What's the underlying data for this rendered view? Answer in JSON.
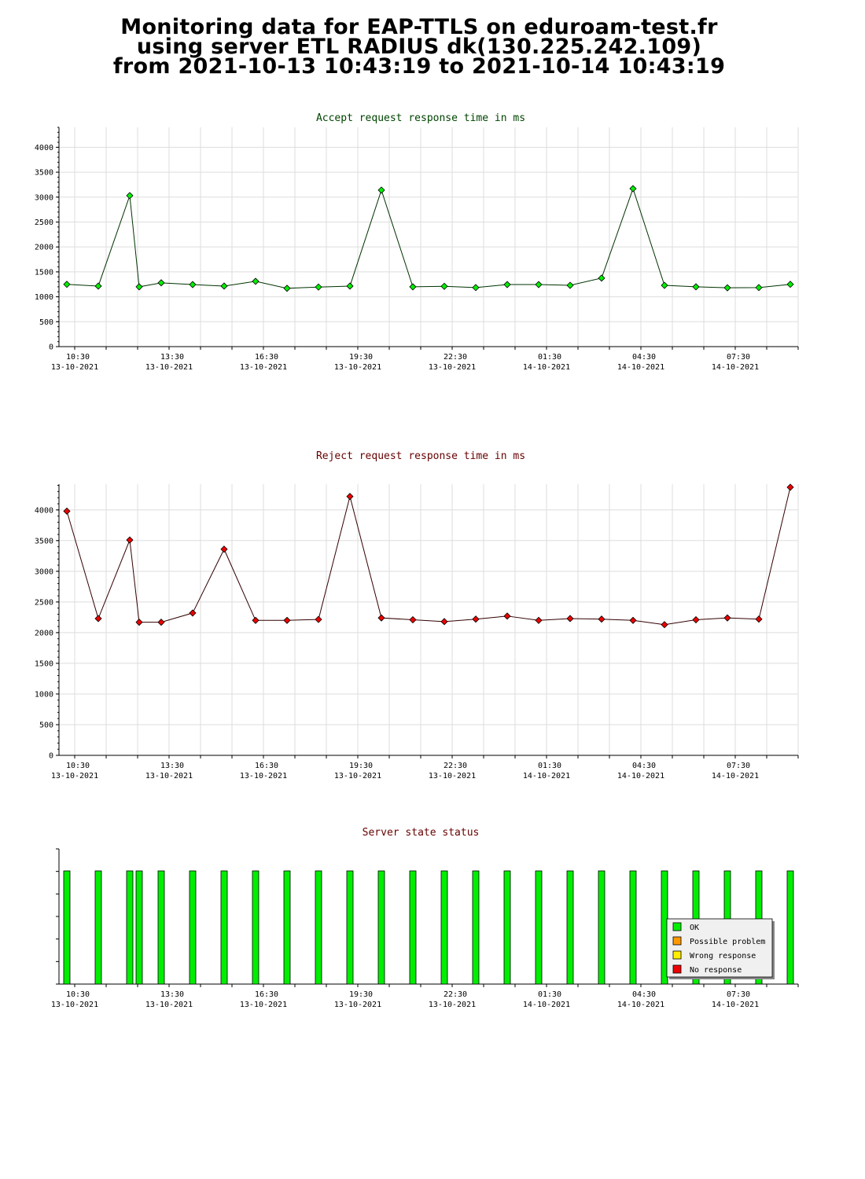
{
  "header": {
    "line1": "Monitoring data for EAP-TTLS on eduroam-test.fr",
    "line2": "using server ETL RADIUS dk(130.225.242.109)",
    "line3": "from 2021-10-13 10:43:19 to 2021-10-14 10:43:19"
  },
  "colors": {
    "accept_line": "#003300",
    "accept_marker": "#00ee00",
    "reject_line": "#330000",
    "reject_marker": "#ee0000",
    "accept_title": "#004400",
    "reject_title": "#660000",
    "status_title": "#660000",
    "ok": "#00ee00",
    "possible_problem": "#ff9900",
    "wrong_response": "#ffee00",
    "no_response": "#ee0000",
    "grid": "#dddddd",
    "legend_bg": "#f0f0f0"
  },
  "chart_data": [
    {
      "type": "line",
      "title": "Accept request response time in ms",
      "ylim": [
        0,
        4400
      ],
      "yticks": [
        0,
        500,
        1000,
        1500,
        2000,
        2500,
        3000,
        3500,
        4000
      ],
      "xlim": [
        10.0,
        33.5
      ],
      "xticks": [
        {
          "pos": 10.5,
          "time": "10:30",
          "date": "13-10-2021"
        },
        {
          "pos": 13.5,
          "time": "13:30",
          "date": "13-10-2021"
        },
        {
          "pos": 16.5,
          "time": "16:30",
          "date": "13-10-2021"
        },
        {
          "pos": 19.5,
          "time": "19:30",
          "date": "13-10-2021"
        },
        {
          "pos": 22.5,
          "time": "22:30",
          "date": "13-10-2021"
        },
        {
          "pos": 25.5,
          "time": "01:30",
          "date": "14-10-2021"
        },
        {
          "pos": 28.5,
          "time": "04:30",
          "date": "14-10-2021"
        },
        {
          "pos": 31.5,
          "time": "07:30",
          "date": "14-10-2021"
        }
      ],
      "grid": true,
      "series": [
        {
          "x": [
            10.25,
            11.25,
            12.25,
            12.55,
            13.25,
            14.25,
            15.25,
            16.25,
            17.25,
            18.25,
            19.25,
            20.25,
            21.25,
            22.25,
            23.25,
            24.25,
            25.25,
            26.25,
            27.25,
            28.25,
            29.25,
            30.25,
            31.25,
            32.25,
            33.25
          ],
          "y": [
            1250,
            1215,
            3030,
            1200,
            1280,
            1245,
            1215,
            1310,
            1170,
            1195,
            1215,
            3140,
            1200,
            1210,
            1185,
            1245,
            1245,
            1230,
            1375,
            3170,
            1230,
            1200,
            1180,
            1185,
            1250
          ]
        }
      ]
    },
    {
      "type": "line",
      "title": "Reject request response time in ms",
      "ylim": [
        0,
        4420
      ],
      "yticks": [
        0,
        500,
        1000,
        1500,
        2000,
        2500,
        3000,
        3500,
        4000
      ],
      "xlim": [
        10.0,
        33.5
      ],
      "xticks": [
        {
          "pos": 10.5,
          "time": "10:30",
          "date": "13-10-2021"
        },
        {
          "pos": 13.5,
          "time": "13:30",
          "date": "13-10-2021"
        },
        {
          "pos": 16.5,
          "time": "16:30",
          "date": "13-10-2021"
        },
        {
          "pos": 19.5,
          "time": "19:30",
          "date": "13-10-2021"
        },
        {
          "pos": 22.5,
          "time": "22:30",
          "date": "13-10-2021"
        },
        {
          "pos": 25.5,
          "time": "01:30",
          "date": "14-10-2021"
        },
        {
          "pos": 28.5,
          "time": "04:30",
          "date": "14-10-2021"
        },
        {
          "pos": 31.5,
          "time": "07:30",
          "date": "14-10-2021"
        }
      ],
      "grid": true,
      "series": [
        {
          "x": [
            10.25,
            11.25,
            12.25,
            12.55,
            13.25,
            14.25,
            15.25,
            16.25,
            17.25,
            18.25,
            19.25,
            20.25,
            21.25,
            22.25,
            23.25,
            24.25,
            25.25,
            26.25,
            27.25,
            28.25,
            29.25,
            30.25,
            31.25,
            32.25,
            33.25
          ],
          "y": [
            3980,
            2230,
            3510,
            2170,
            2170,
            2320,
            3360,
            2200,
            2200,
            2215,
            4220,
            2240,
            2210,
            2180,
            2220,
            2270,
            2200,
            2230,
            2220,
            2200,
            2130,
            2210,
            2240,
            2220,
            4370
          ]
        }
      ]
    },
    {
      "type": "bar",
      "title": "Server state status",
      "xlim": [
        10.0,
        33.5
      ],
      "xticks": [
        {
          "pos": 10.5,
          "time": "10:30",
          "date": "13-10-2021"
        },
        {
          "pos": 13.5,
          "time": "13:30",
          "date": "13-10-2021"
        },
        {
          "pos": 16.5,
          "time": "16:30",
          "date": "13-10-2021"
        },
        {
          "pos": 19.5,
          "time": "19:30",
          "date": "13-10-2021"
        },
        {
          "pos": 22.5,
          "time": "22:30",
          "date": "13-10-2021"
        },
        {
          "pos": 25.5,
          "time": "01:30",
          "date": "14-10-2021"
        },
        {
          "pos": 28.5,
          "time": "04:30",
          "date": "14-10-2021"
        },
        {
          "pos": 31.5,
          "time": "07:30",
          "date": "14-10-2021"
        }
      ],
      "x": [
        10.25,
        11.25,
        12.25,
        12.55,
        13.25,
        14.25,
        15.25,
        16.25,
        17.25,
        18.25,
        19.25,
        20.25,
        21.25,
        22.25,
        23.25,
        24.25,
        25.25,
        26.25,
        27.25,
        28.25,
        29.25,
        30.25,
        31.25,
        32.25,
        33.25
      ],
      "status": [
        "OK",
        "OK",
        "OK",
        "OK",
        "OK",
        "OK",
        "OK",
        "OK",
        "OK",
        "OK",
        "OK",
        "OK",
        "OK",
        "OK",
        "OK",
        "OK",
        "OK",
        "OK",
        "OK",
        "OK",
        "OK",
        "OK",
        "OK",
        "OK",
        "OK"
      ],
      "legend": {
        "position": "bottom-right",
        "items": [
          {
            "label": "OK",
            "color": "#00ee00"
          },
          {
            "label": "Possible problem",
            "color": "#ff9900"
          },
          {
            "label": "Wrong response",
            "color": "#ffee00"
          },
          {
            "label": "No response",
            "color": "#ee0000"
          }
        ]
      }
    }
  ]
}
